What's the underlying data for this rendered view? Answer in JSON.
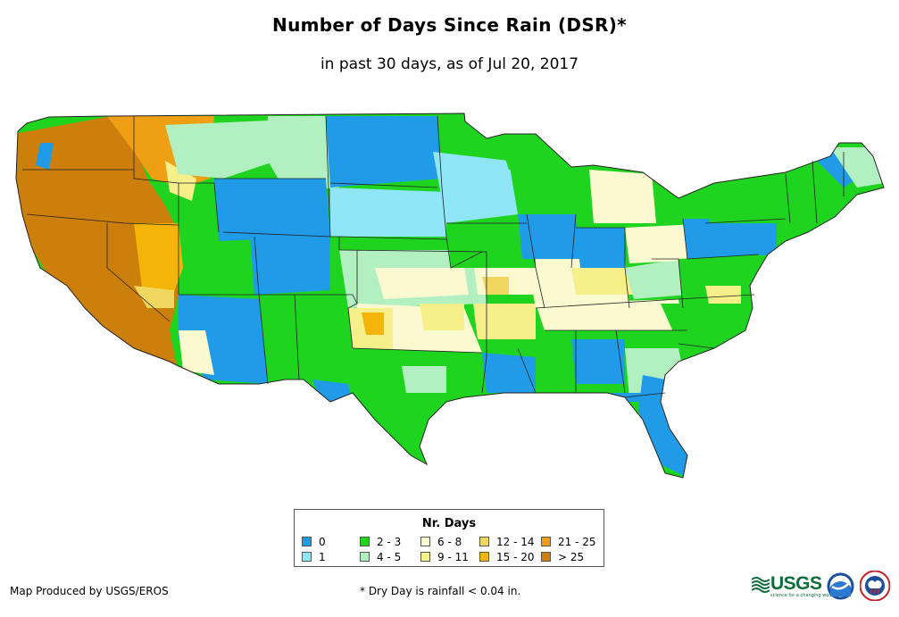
{
  "header": {
    "title": "Number of Days Since Rain (DSR)*",
    "subtitle": "in past 30 days, as of Jul 20, 2017"
  },
  "legend": {
    "title": "Nr. Days",
    "items": [
      {
        "label": "0",
        "color": "#1f9be8"
      },
      {
        "label": "1",
        "color": "#8fe6f6"
      },
      {
        "label": "2 - 3",
        "color": "#1fd41f"
      },
      {
        "label": "4 - 5",
        "color": "#b2f0c2"
      },
      {
        "label": "6 - 8",
        "color": "#fbf9d0"
      },
      {
        "label": "9 - 11",
        "color": "#f7ef8a"
      },
      {
        "label": "12 - 14",
        "color": "#f0d760"
      },
      {
        "label": "15 - 20",
        "color": "#f4b40a"
      },
      {
        "label": "21 - 25",
        "color": "#ee9f14"
      },
      {
        "label": "> 25",
        "color": "#cc7f0a"
      }
    ]
  },
  "footer": {
    "credit": "Map Produced by USGS/EROS",
    "footnote": "* Dry Day is rainfall < 0.04 in."
  },
  "logos": {
    "usgs": "USGS",
    "usgs_tagline": "science for a changing world",
    "noaa": "noaa-logo",
    "nws": "nws-logo"
  }
}
